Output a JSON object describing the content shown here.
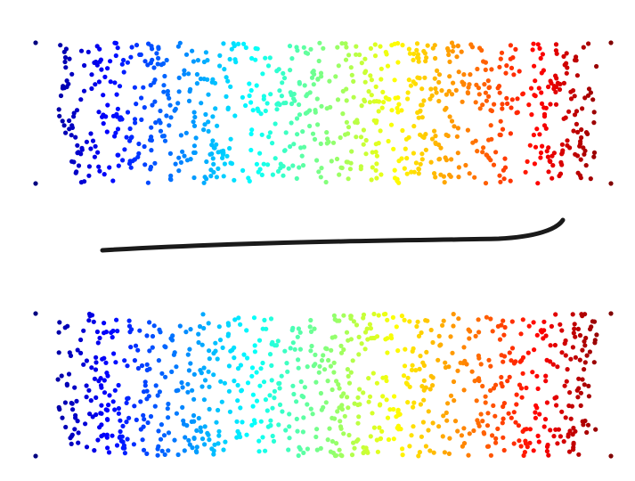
{
  "chart_data": {
    "type": "scatter",
    "colormap": "jet"
  }
}
